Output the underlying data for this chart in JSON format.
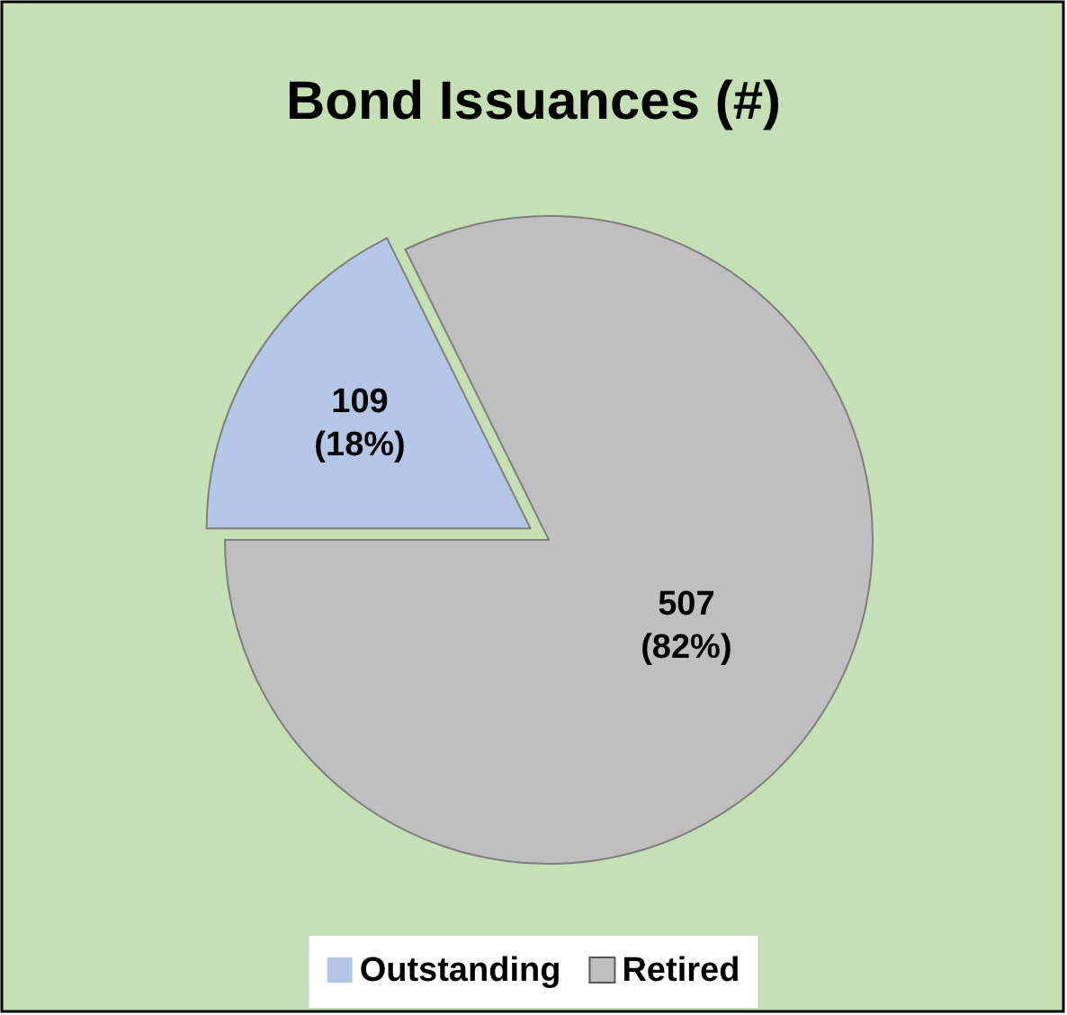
{
  "chart_data": {
    "type": "pie",
    "title": "Bond Issuances (#)",
    "categories": [
      "Outstanding",
      "Retired"
    ],
    "values": [
      109,
      507
    ],
    "colors": [
      "#b4c7e7",
      "#bfbfbf"
    ],
    "value_labels": [
      "109 (18%)",
      "507 (82%)"
    ],
    "legend": "bottom"
  }
}
